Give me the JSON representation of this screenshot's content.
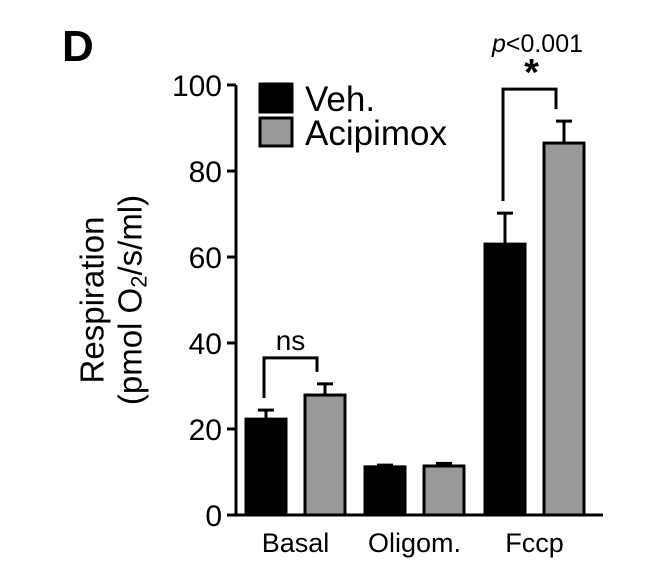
{
  "panel": {
    "label": "D"
  },
  "chart_data": {
    "type": "bar",
    "title": "",
    "xlabel": "",
    "ylabel": "Respiration",
    "ylabel_units": {
      "prefix": "(pmol O",
      "subscript": "2",
      "suffix": "/s/ml)"
    },
    "ylim": [
      0,
      100
    ],
    "yticks": [
      0,
      20,
      40,
      60,
      80,
      100
    ],
    "categories": [
      "Basal",
      "Oligom.",
      "Fccp"
    ],
    "series": [
      {
        "name": "Veh.",
        "color": "#000000",
        "values": [
          22.3,
          11.2,
          63.0
        ],
        "errors": [
          2.1,
          0.4,
          7.2
        ]
      },
      {
        "name": "Acipimox",
        "color": "#999999",
        "values": [
          27.9,
          11.4,
          86.5
        ],
        "errors": [
          2.6,
          0.6,
          5.1
        ]
      }
    ],
    "annotations": [
      {
        "category": "Basal",
        "text": "ns"
      },
      {
        "category": "Fccp",
        "text": "*",
        "pvalue": "p<0.001"
      }
    ],
    "legend": {
      "position": "top-left",
      "entries": [
        "Veh.",
        "Acipimox"
      ]
    },
    "grid": false
  }
}
